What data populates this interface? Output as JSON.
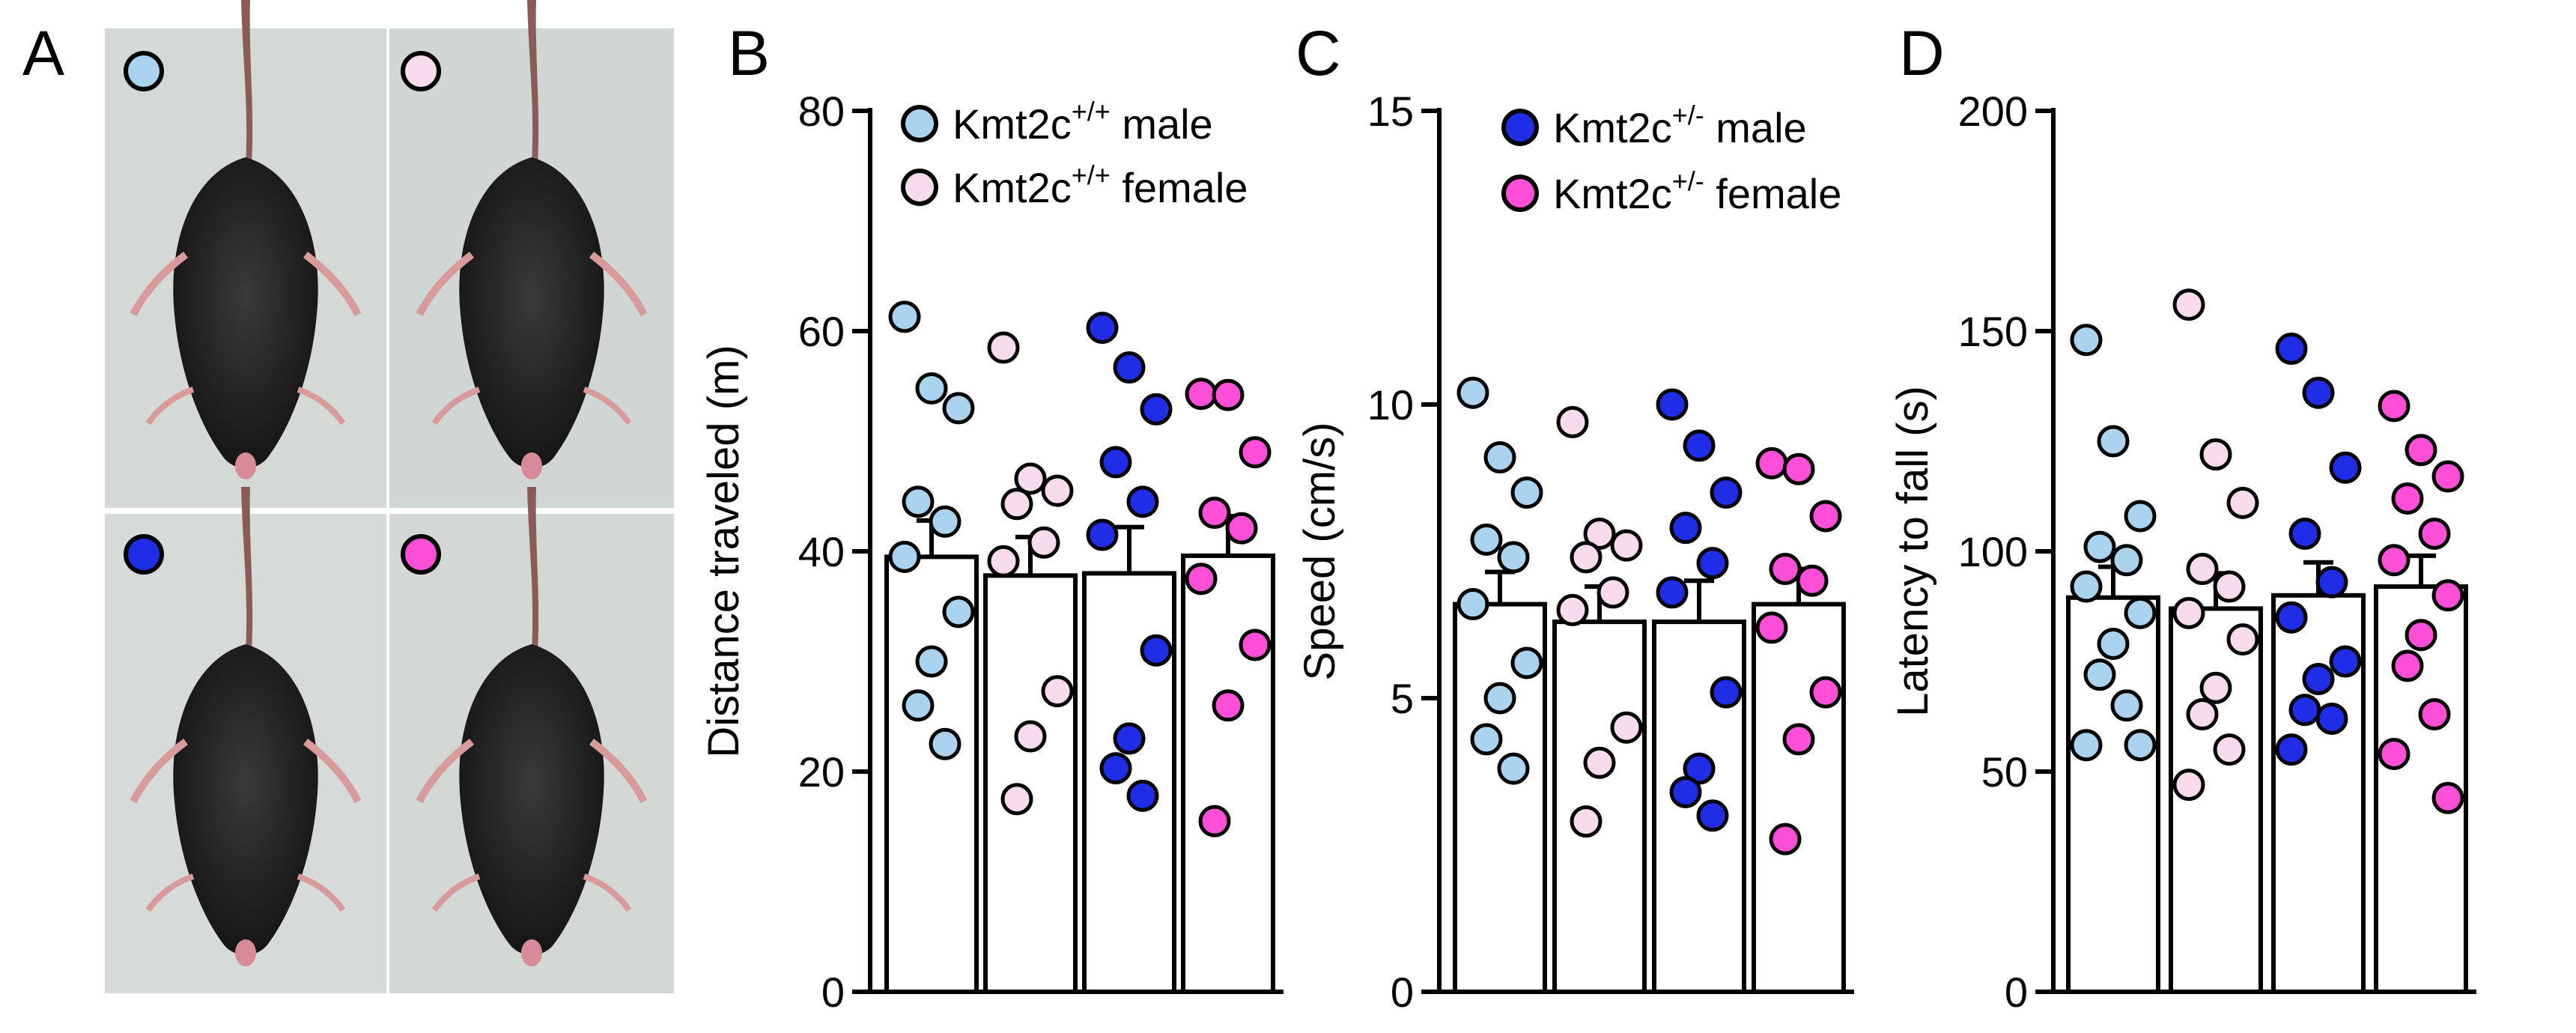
{
  "panels": {
    "A": {
      "letter": "A",
      "photos": [
        {
          "marker_color": "#a9d3ee",
          "group": "Kmt2c+/+ male"
        },
        {
          "marker_color": "#f9dbee",
          "group": "Kmt2c+/+ female"
        },
        {
          "marker_color": "#1f2ee6",
          "group": "Kmt2c+/- male"
        },
        {
          "marker_color": "#ff4fd8",
          "group": "Kmt2c+/- female"
        }
      ]
    },
    "B": {
      "letter": "B"
    },
    "C": {
      "letter": "C"
    },
    "D": {
      "letter": "D"
    }
  },
  "legend": {
    "left": [
      {
        "base": "Kmt2c",
        "sup": "+/+",
        "suffix": " male",
        "color": "#a9d3ee"
      },
      {
        "base": "Kmt2c",
        "sup": "+/+",
        "suffix": " female",
        "color": "#f9dbee"
      }
    ],
    "right": [
      {
        "base": "Kmt2c",
        "sup": "+/-",
        "suffix": " male",
        "color": "#1f2ee6"
      },
      {
        "base": "Kmt2c",
        "sup": "+/-",
        "suffix": " female",
        "color": "#ff4fd8"
      }
    ]
  },
  "chart_data": [
    {
      "panel": "B",
      "type": "bar",
      "ylabel": "Distance traveled (m)",
      "ylim": [
        0,
        80
      ],
      "yticks": [
        0,
        20,
        40,
        60,
        80
      ],
      "categories": [
        "Kmt2c+/+ male",
        "Kmt2c+/+ female",
        "Kmt2c+/- male",
        "Kmt2c+/- female"
      ],
      "colors": [
        "#a9d3ee",
        "#f9dbee",
        "#1f2ee6",
        "#ff4fd8"
      ],
      "means": [
        39.5,
        37.8,
        38.0,
        39.6
      ],
      "sem": [
        3.3,
        3.5,
        4.2,
        3.6
      ],
      "points": [
        [
          61.3,
          54.8,
          53.0,
          44.5,
          42.7,
          39.5,
          34.5,
          30.0,
          26.0,
          22.5
        ],
        [
          58.5,
          46.6,
          45.5,
          44.3,
          40.8,
          39.1,
          27.3,
          23.2,
          17.5
        ],
        [
          60.3,
          56.7,
          52.9,
          48.1,
          44.5,
          41.5,
          31.0,
          23.0,
          20.3,
          17.8
        ],
        [
          54.3,
          54.2,
          49.0,
          43.5,
          42.1,
          37.5,
          31.5,
          26.0,
          15.5
        ]
      ]
    },
    {
      "panel": "C",
      "type": "bar",
      "ylabel": "Speed (cm/s)",
      "ylim": [
        0,
        15
      ],
      "yticks": [
        0,
        5,
        10,
        15
      ],
      "categories": [
        "Kmt2c+/+ male",
        "Kmt2c+/+ female",
        "Kmt2c+/- male",
        "Kmt2c+/- female"
      ],
      "colors": [
        "#a9d3ee",
        "#f9dbee",
        "#1f2ee6",
        "#ff4fd8"
      ],
      "means": [
        6.6,
        6.3,
        6.3,
        6.6
      ],
      "sem": [
        0.55,
        0.6,
        0.7,
        0.6
      ],
      "points": [
        [
          10.2,
          9.1,
          8.5,
          7.7,
          7.4,
          6.6,
          5.6,
          5.0,
          4.3,
          3.8
        ],
        [
          9.7,
          7.8,
          7.6,
          7.4,
          6.8,
          6.5,
          4.5,
          3.9,
          2.9
        ],
        [
          10.0,
          9.3,
          8.5,
          7.9,
          7.3,
          6.8,
          5.1,
          3.8,
          3.4,
          3.0
        ],
        [
          9.0,
          8.9,
          8.1,
          7.2,
          7.0,
          6.2,
          5.1,
          4.3,
          2.6
        ]
      ]
    },
    {
      "panel": "D",
      "type": "bar",
      "ylabel": "Latency to fall (s)",
      "ylim": [
        0,
        200
      ],
      "yticks": [
        0,
        50,
        100,
        150,
        200
      ],
      "categories": [
        "Kmt2c+/+ male",
        "Kmt2c+/+ female",
        "Kmt2c+/- male",
        "Kmt2c+/- female"
      ],
      "colors": [
        "#a9d3ee",
        "#f9dbee",
        "#1f2ee6",
        "#ff4fd8"
      ],
      "means": [
        89.5,
        87.0,
        90.0,
        92.0
      ],
      "sem": [
        7.0,
        8.0,
        7.5,
        7.0
      ],
      "points": [
        [
          148,
          125,
          108,
          101,
          98,
          92,
          86,
          79,
          72,
          65,
          56,
          56
        ],
        [
          156,
          122,
          111,
          96,
          92,
          86,
          80,
          69,
          63,
          55,
          47
        ],
        [
          146,
          136,
          119,
          104,
          93,
          85,
          75,
          71,
          64,
          62,
          55
        ],
        [
          133,
          123,
          117,
          112,
          104,
          98,
          90,
          81,
          74,
          63,
          54,
          44
        ]
      ]
    }
  ]
}
